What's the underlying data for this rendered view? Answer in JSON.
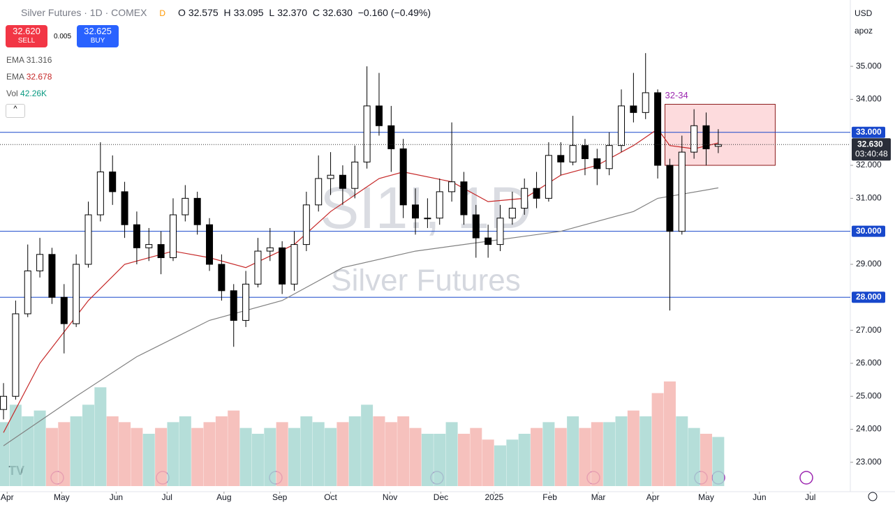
{
  "header": {
    "symbol": "Silver Futures · 1D · COMEX",
    "badge": "D",
    "ohlc": [
      {
        "key": "O",
        "value": "32.575"
      },
      {
        "key": "H",
        "value": "33.095"
      },
      {
        "key": "L",
        "value": "32.370"
      },
      {
        "key": "C",
        "value": "32.630"
      }
    ],
    "change": "−0.160 (−0.49%)"
  },
  "trade": {
    "sell_price": "32.620",
    "sell": "SELL",
    "spread": "0.005",
    "buy_price": "32.625",
    "buy": "BUY"
  },
  "indicators": [
    {
      "name": "EMA",
      "value": "31.316"
    },
    {
      "name": "EMA",
      "value": "32.678"
    },
    {
      "name": "Vol",
      "value": "42.26K"
    }
  ],
  "controls": {
    "currency": "USD",
    "scale": "apoz"
  },
  "chart_data": {
    "type": "candlestick",
    "watermark": [
      "SI1!, 1D",
      "Silver Futures"
    ],
    "categories": [
      null,
      null,
      null,
      null,
      null,
      null,
      null,
      null,
      null,
      null,
      null,
      null,
      null,
      null,
      null,
      null,
      null,
      null,
      null,
      null,
      null,
      null,
      null,
      null,
      null,
      null,
      null,
      null,
      null,
      null,
      null,
      null,
      null,
      null,
      null,
      null,
      null,
      null,
      null,
      null,
      null,
      null,
      null,
      null,
      null,
      null,
      null,
      null,
      null,
      null,
      null,
      null,
      null,
      null,
      null,
      null,
      null,
      null,
      null,
      null
    ],
    "open": [
      24.6,
      25.0,
      27.5,
      28.8,
      29.3,
      28.0,
      27.2,
      29.0,
      30.5,
      31.8,
      31.2,
      30.2,
      29.5,
      29.6,
      29.2,
      30.5,
      31.0,
      30.2,
      29.0,
      28.2,
      27.3,
      28.4,
      29.4,
      29.5,
      28.4,
      29.6,
      30.8,
      31.6,
      31.7,
      31.3,
      32.1,
      33.8,
      33.2,
      32.5,
      30.8,
      30.4,
      30.4,
      31.2,
      31.5,
      30.5,
      29.8,
      29.6,
      30.4,
      30.7,
      31.3,
      31.0,
      32.3,
      32.1,
      32.6,
      32.2,
      31.9,
      32.6,
      33.8,
      33.6,
      34.2,
      32.0,
      30.0,
      32.4,
      33.2,
      32.575
    ],
    "high": [
      25.4,
      27.9,
      29.6,
      29.8,
      29.5,
      28.4,
      29.3,
      30.9,
      32.7,
      32.3,
      31.5,
      30.6,
      30.1,
      30.0,
      31.0,
      31.4,
      31.2,
      30.4,
      29.3,
      28.4,
      28.8,
      29.8,
      30.1,
      29.7,
      30.0,
      31.2,
      32.3,
      32.4,
      32.0,
      32.6,
      35.0,
      34.8,
      33.8,
      32.8,
      31.3,
      31.0,
      31.6,
      33.3,
      31.8,
      30.8,
      30.2,
      30.8,
      31.2,
      31.6,
      31.8,
      32.7,
      32.7,
      33.5,
      32.8,
      32.5,
      33.0,
      34.3,
      34.8,
      35.4,
      34.3,
      32.2,
      32.9,
      33.7,
      33.6,
      33.095
    ],
    "low": [
      24.3,
      24.9,
      27.4,
      28.6,
      27.8,
      26.3,
      27.1,
      28.9,
      30.3,
      30.8,
      29.8,
      29.0,
      29.1,
      28.7,
      29.1,
      30.3,
      29.9,
      28.8,
      27.9,
      26.5,
      27.1,
      28.3,
      29.1,
      28.1,
      28.2,
      29.4,
      30.6,
      31.1,
      30.8,
      31.0,
      31.9,
      32.9,
      31.8,
      30.4,
      29.9,
      30.1,
      30.2,
      30.9,
      30.2,
      29.2,
      29.2,
      29.4,
      30.2,
      30.5,
      30.7,
      30.9,
      31.7,
      32.0,
      31.7,
      31.4,
      31.7,
      32.4,
      33.3,
      33.4,
      31.6,
      27.6,
      29.9,
      32.2,
      32.0,
      32.37
    ],
    "close": [
      25.0,
      27.5,
      28.8,
      29.3,
      28.0,
      27.2,
      29.0,
      30.5,
      31.8,
      31.2,
      30.2,
      29.5,
      29.6,
      29.2,
      30.5,
      31.0,
      30.2,
      29.0,
      28.2,
      27.3,
      28.4,
      29.4,
      29.5,
      28.4,
      29.6,
      30.8,
      31.6,
      31.7,
      31.3,
      32.1,
      33.8,
      33.2,
      32.5,
      30.8,
      30.4,
      30.4,
      31.2,
      31.5,
      30.5,
      29.8,
      29.6,
      30.4,
      30.7,
      31.3,
      31.0,
      32.3,
      32.1,
      32.6,
      32.2,
      31.9,
      32.6,
      33.8,
      33.6,
      34.2,
      32.0,
      30.0,
      32.4,
      33.2,
      32.5,
      32.63
    ],
    "volume": [
      55,
      70,
      60,
      65,
      50,
      55,
      60,
      70,
      85,
      60,
      55,
      50,
      45,
      50,
      55,
      60,
      50,
      55,
      60,
      65,
      50,
      45,
      50,
      55,
      50,
      60,
      55,
      50,
      55,
      60,
      70,
      60,
      55,
      60,
      50,
      45,
      45,
      55,
      45,
      50,
      40,
      35,
      40,
      45,
      50,
      55,
      50,
      60,
      50,
      55,
      55,
      60,
      65,
      60,
      80,
      90,
      60,
      50,
      45,
      42.26
    ],
    "up_color": "#ffffff",
    "down_color": "#000000",
    "wick_color": "#000000",
    "volume_up_color": "#a8d8d2",
    "volume_down_color": "#f4b6b2",
    "series": [
      {
        "name": "EMA",
        "color": "#808080",
        "x": [
          0,
          6,
          11,
          17,
          23,
          28,
          34,
          40,
          46,
          52,
          54,
          59
        ],
        "values": [
          23.5,
          25.0,
          26.2,
          27.3,
          27.9,
          28.9,
          29.4,
          29.7,
          30.0,
          30.6,
          31.0,
          31.316
        ]
      },
      {
        "name": "EMA",
        "color": "#c62828",
        "x": [
          0,
          3,
          7,
          10,
          14,
          17,
          20,
          24,
          27,
          31,
          33,
          37,
          40,
          43,
          46,
          49,
          52,
          54,
          55,
          57,
          59
        ],
        "values": [
          23.9,
          26.0,
          27.9,
          29.0,
          29.4,
          29.2,
          28.9,
          29.6,
          30.6,
          31.6,
          31.8,
          31.5,
          30.9,
          31.0,
          31.7,
          32.0,
          32.6,
          33.1,
          32.6,
          32.5,
          32.678
        ]
      }
    ],
    "xlim": [
      -0.29,
      69.9
    ],
    "ylim": [
      22.11,
      37.01
    ],
    "xticks": [
      {
        "value": 0.3,
        "label": "Apr"
      },
      {
        "value": 4.8,
        "label": "May"
      },
      {
        "value": 9.3,
        "label": "Jun"
      },
      {
        "value": 13.5,
        "label": "Jul"
      },
      {
        "value": 18.2,
        "label": "Aug"
      },
      {
        "value": 22.8,
        "label": "Sep"
      },
      {
        "value": 27.0,
        "label": "Oct"
      },
      {
        "value": 31.9,
        "label": "Nov"
      },
      {
        "value": 36.1,
        "label": "Dec"
      },
      {
        "value": 40.5,
        "label": "2025"
      },
      {
        "value": 45.1,
        "label": "Feb"
      },
      {
        "value": 49.1,
        "label": "Mar"
      },
      {
        "value": 53.6,
        "label": "Apr"
      },
      {
        "value": 58.0,
        "label": "May"
      },
      {
        "value": 62.4,
        "label": "Jun"
      },
      {
        "value": 66.6,
        "label": "Jul"
      }
    ],
    "yticks": [
      {
        "value": 35,
        "label": "35.000"
      },
      {
        "value": 34,
        "label": "34.000"
      },
      {
        "value": 32,
        "label": "32.000"
      },
      {
        "value": 31,
        "label": "31.000"
      },
      {
        "value": 29,
        "label": "29.000"
      },
      {
        "value": 27,
        "label": "27.000"
      },
      {
        "value": 26,
        "label": "26.000"
      },
      {
        "value": 25,
        "label": "25.000"
      },
      {
        "value": 24,
        "label": "24.000"
      },
      {
        "value": 23,
        "label": "23.000"
      }
    ],
    "hlines": [
      {
        "value": 33,
        "label": "33.000"
      },
      {
        "value": 30,
        "label": "30.000"
      },
      {
        "value": 28,
        "label": "28.000"
      }
    ],
    "hline_color": "#1848cc",
    "last_price": {
      "value": 32.63,
      "label": "32.630",
      "countdown": "03:40:48"
    },
    "zone": {
      "label": "32-34",
      "x": [
        54.6,
        63.7
      ],
      "y": [
        32.0,
        33.85
      ]
    }
  }
}
